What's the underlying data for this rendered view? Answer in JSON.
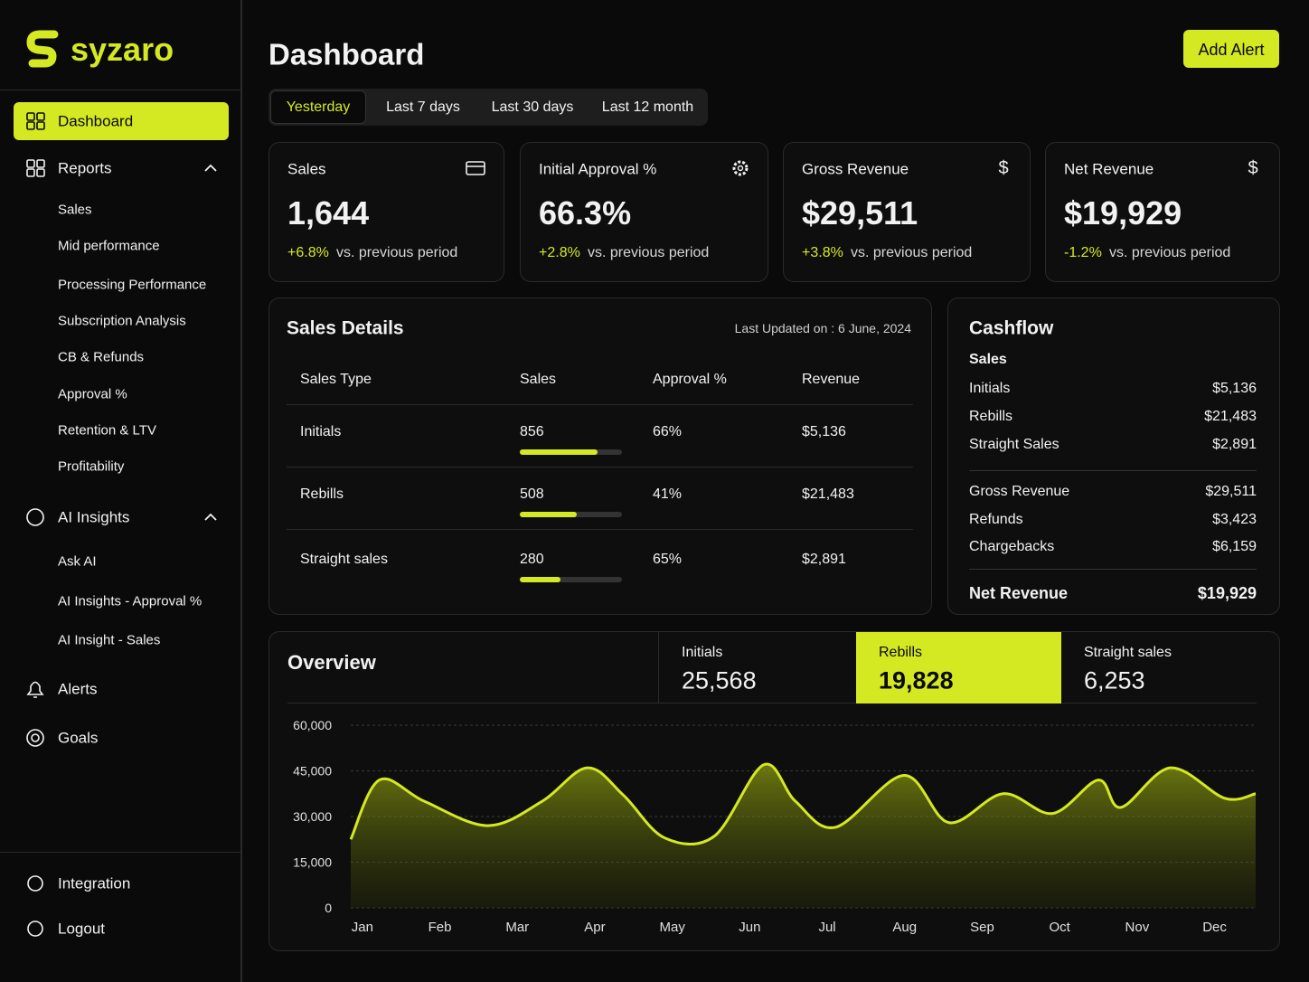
{
  "sidebar": {
    "logo": "syzaro",
    "nav": [
      {
        "label": "Dashboard",
        "active": true
      },
      {
        "label": "Reports",
        "items": [
          "Sales",
          "Mid performance",
          "Processing Performance",
          "Subscription Analysis",
          "CB & Refunds",
          "Approval %",
          "Retention & LTV",
          "Profitability"
        ]
      },
      {
        "label": "AI Insights",
        "items": [
          "Ask AI",
          "AI Insights - Approval %",
          "AI Insight - Sales"
        ]
      },
      {
        "label": "Alerts"
      },
      {
        "label": "Goals"
      }
    ],
    "footer": [
      "Integration",
      "Logout"
    ]
  },
  "header": {
    "title": "Dashboard",
    "button": "Add Alert"
  },
  "periods": {
    "options": [
      "Yesterday",
      "Last 7 days",
      "Last 30 days",
      "Last 12 month"
    ],
    "selected": 0
  },
  "kpis": [
    {
      "label": "Sales",
      "value": "1,644",
      "change": "+6.8%",
      "note": "vs. previous period"
    },
    {
      "label": "Initial Approval %",
      "value": "66.3%",
      "change": "+2.8%",
      "note": "vs. previous period"
    },
    {
      "label": "Gross Revenue",
      "icon": "$",
      "value": "$29,511",
      "change": "+3.8%",
      "note": "vs. previous period"
    },
    {
      "label": "Net Revenue",
      "icon": "$",
      "value": "$19,929",
      "change": "-1.2%",
      "note": "vs. previous period"
    }
  ],
  "sales_details": {
    "title": "Sales Details",
    "updated": "Last Updated on : 6 June, 2024",
    "columns": [
      "Sales Type",
      "Sales",
      "Approval %",
      "Revenue"
    ],
    "rows": [
      {
        "cells": [
          "Initials",
          "856",
          "66%",
          "$5,136"
        ],
        "progress": 76
      },
      {
        "cells": [
          "Rebills",
          "508",
          "41%",
          "$21,483"
        ],
        "progress": 56
      },
      {
        "cells": [
          "Straight sales",
          "280",
          "65%",
          "$2,891"
        ],
        "progress": 40
      }
    ]
  },
  "cashflow": {
    "title": "Cashflow",
    "section": "Sales",
    "groups": [
      [
        {
          "label": "Initials",
          "value": "$5,136"
        },
        {
          "label": "Rebills",
          "value": "$21,483"
        },
        {
          "label": "Straight Sales",
          "value": "$2,891"
        }
      ],
      [
        {
          "label": "Gross Revenue",
          "value": "$29,511"
        },
        {
          "label": "Refunds",
          "value": "$3,423"
        },
        {
          "label": "Chargebacks",
          "value": "$6,159"
        }
      ]
    ],
    "total": {
      "label": "Net Revenue",
      "value": "$19,929"
    }
  },
  "overview": {
    "title": "Overview",
    "stats": [
      {
        "label": "Initials",
        "value": "25,568"
      },
      {
        "label": "Rebills",
        "value": "19,828"
      },
      {
        "label": "Straight sales",
        "value": "6,253"
      }
    ],
    "selected": 1
  },
  "chart_data": {
    "type": "area",
    "color": "#d4e921",
    "x": [
      -0.15,
      0.22,
      0.8,
      1.62,
      2.32,
      2.9,
      3.37,
      3.9,
      4.54,
      5.18,
      5.59,
      6.11,
      6.99,
      7.57,
      8.27,
      8.91,
      9.5,
      9.79,
      10.43,
      11.13,
      11.53
    ],
    "values": [
      22500,
      42000,
      35000,
      27000,
      35000,
      46000,
      37000,
      23000,
      23500,
      47000,
      35000,
      26500,
      43500,
      28000,
      37500,
      31000,
      42000,
      33000,
      46000,
      36000,
      37500
    ],
    "xlim": [
      -0.15,
      11.53
    ],
    "xticks": [
      {
        "value": 0,
        "label": "Jan"
      },
      {
        "value": 1,
        "label": "Feb"
      },
      {
        "value": 2,
        "label": "Mar"
      },
      {
        "value": 3,
        "label": "Apr"
      },
      {
        "value": 4,
        "label": "May"
      },
      {
        "value": 5,
        "label": "Jun"
      },
      {
        "value": 6,
        "label": "Jul"
      },
      {
        "value": 7,
        "label": "Aug"
      },
      {
        "value": 8,
        "label": "Sep"
      },
      {
        "value": 9,
        "label": "Oct"
      },
      {
        "value": 10,
        "label": "Nov"
      },
      {
        "value": 11,
        "label": "Dec"
      }
    ],
    "ylim": [
      0,
      60000
    ],
    "yticks": [
      0,
      {
        "value": 15000,
        "label": "15,000"
      },
      {
        "value": 30000,
        "label": "30,000"
      },
      {
        "value": 45000,
        "label": "45,000"
      },
      {
        "value": 60000,
        "label": "60,000"
      }
    ],
    "grid": true
  }
}
